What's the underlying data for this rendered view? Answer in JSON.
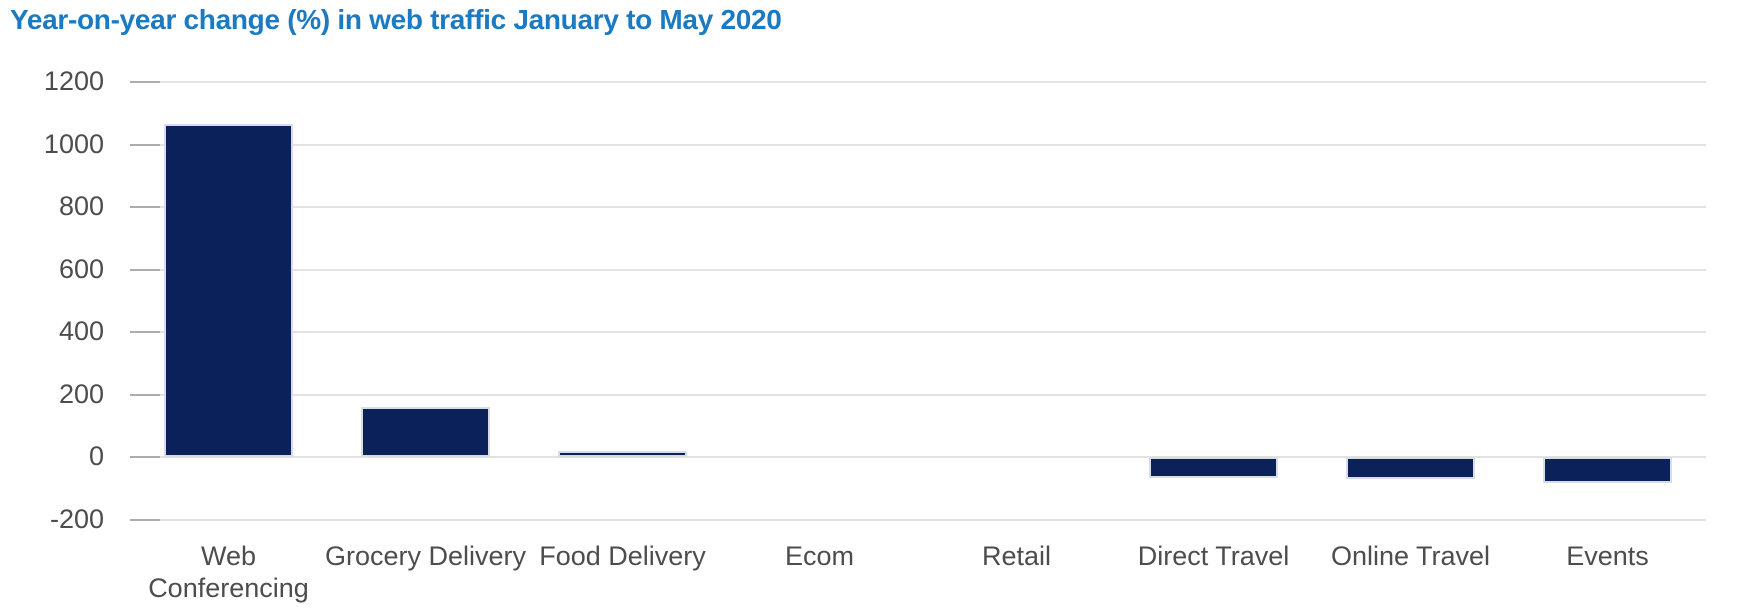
{
  "chart_data": {
    "type": "bar",
    "title": "Year-on-year change (%) in web traffic January to May 2020",
    "categories": [
      "Web Conferencing",
      "Grocery Delivery",
      "Food Delivery",
      "Ecom",
      "Retail",
      "Direct Travel",
      "Online Travel",
      "Events"
    ],
    "xtick_labels": [
      "Web\nConferencing",
      "Grocery Delivery",
      "Food Delivery",
      "Ecom",
      "Retail",
      "Direct Travel",
      "Online Travel",
      "Events"
    ],
    "values": [
      1065,
      160,
      20,
      0,
      0,
      -65,
      -70,
      -83
    ],
    "yticks": [
      1200,
      1000,
      800,
      600,
      400,
      200,
      0,
      -200
    ],
    "ylim": [
      -200,
      1200
    ],
    "ytick_step": 200,
    "xlabel": "",
    "ylabel": "",
    "grid": true,
    "legend": "none",
    "colors": {
      "bar": "#0a2259",
      "bar_border": "#d8dce6",
      "title": "#1b7ac1",
      "axis_text": "#4d4d4d",
      "gridline": "#e2e2e2",
      "tick_mark": "#adadad",
      "background": "#ffffff"
    }
  }
}
